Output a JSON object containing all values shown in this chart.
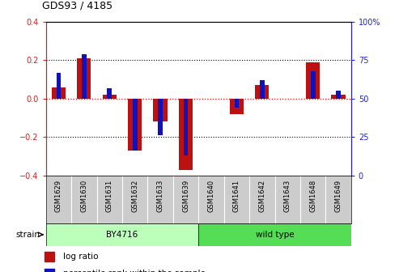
{
  "title": "GDS93 / 4185",
  "samples": [
    "GSM1629",
    "GSM1630",
    "GSM1631",
    "GSM1632",
    "GSM1633",
    "GSM1639",
    "GSM1640",
    "GSM1641",
    "GSM1642",
    "GSM1643",
    "GSM1648",
    "GSM1649"
  ],
  "log_ratio": [
    0.06,
    0.21,
    0.02,
    -0.27,
    -0.12,
    -0.37,
    0.0,
    -0.08,
    0.07,
    0.0,
    0.19,
    0.02
  ],
  "percentile": [
    67,
    79,
    57,
    16,
    26,
    13,
    50,
    44,
    62,
    50,
    68,
    55
  ],
  "strains": [
    {
      "label": "BY4716",
      "start": 0,
      "end": 6,
      "color": "#bbffbb"
    },
    {
      "label": "wild type",
      "start": 6,
      "end": 12,
      "color": "#55dd55"
    }
  ],
  "bar_color_red": "#bb1111",
  "bar_color_blue": "#1111bb",
  "ylim": [
    -0.4,
    0.4
  ],
  "y2lim": [
    0,
    100
  ],
  "yticks": [
    -0.4,
    -0.2,
    0.0,
    0.2,
    0.4
  ],
  "y2ticks": [
    0,
    25,
    50,
    75,
    100
  ],
  "axis_color_left": "#cc2222",
  "axis_color_right": "#2222cc",
  "red_bar_width": 0.55,
  "blue_bar_width": 0.18
}
